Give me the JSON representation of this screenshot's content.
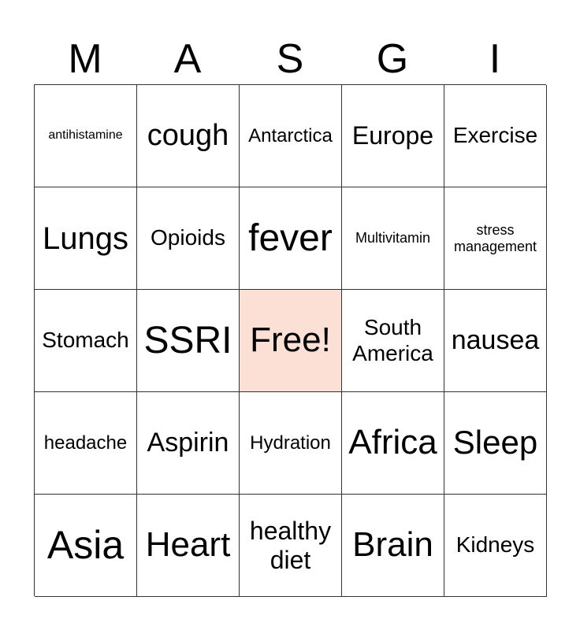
{
  "header": [
    "M",
    "A",
    "S",
    "G",
    "I"
  ],
  "free_color": "#fce0d6",
  "cells": [
    [
      "antihistamine",
      "cough",
      "Antarctica",
      "Europe",
      "Exercise"
    ],
    [
      "Lungs",
      "Opioids",
      "fever",
      "Multivitamin",
      "stress management"
    ],
    [
      "Stomach",
      "SSRI",
      "Free!",
      "South America",
      "nausea"
    ],
    [
      "headache",
      "Aspirin",
      "Hydration",
      "Africa",
      "Sleep"
    ],
    [
      "Asia",
      "Heart",
      "healthy diet",
      "Brain",
      "Kidneys"
    ]
  ]
}
